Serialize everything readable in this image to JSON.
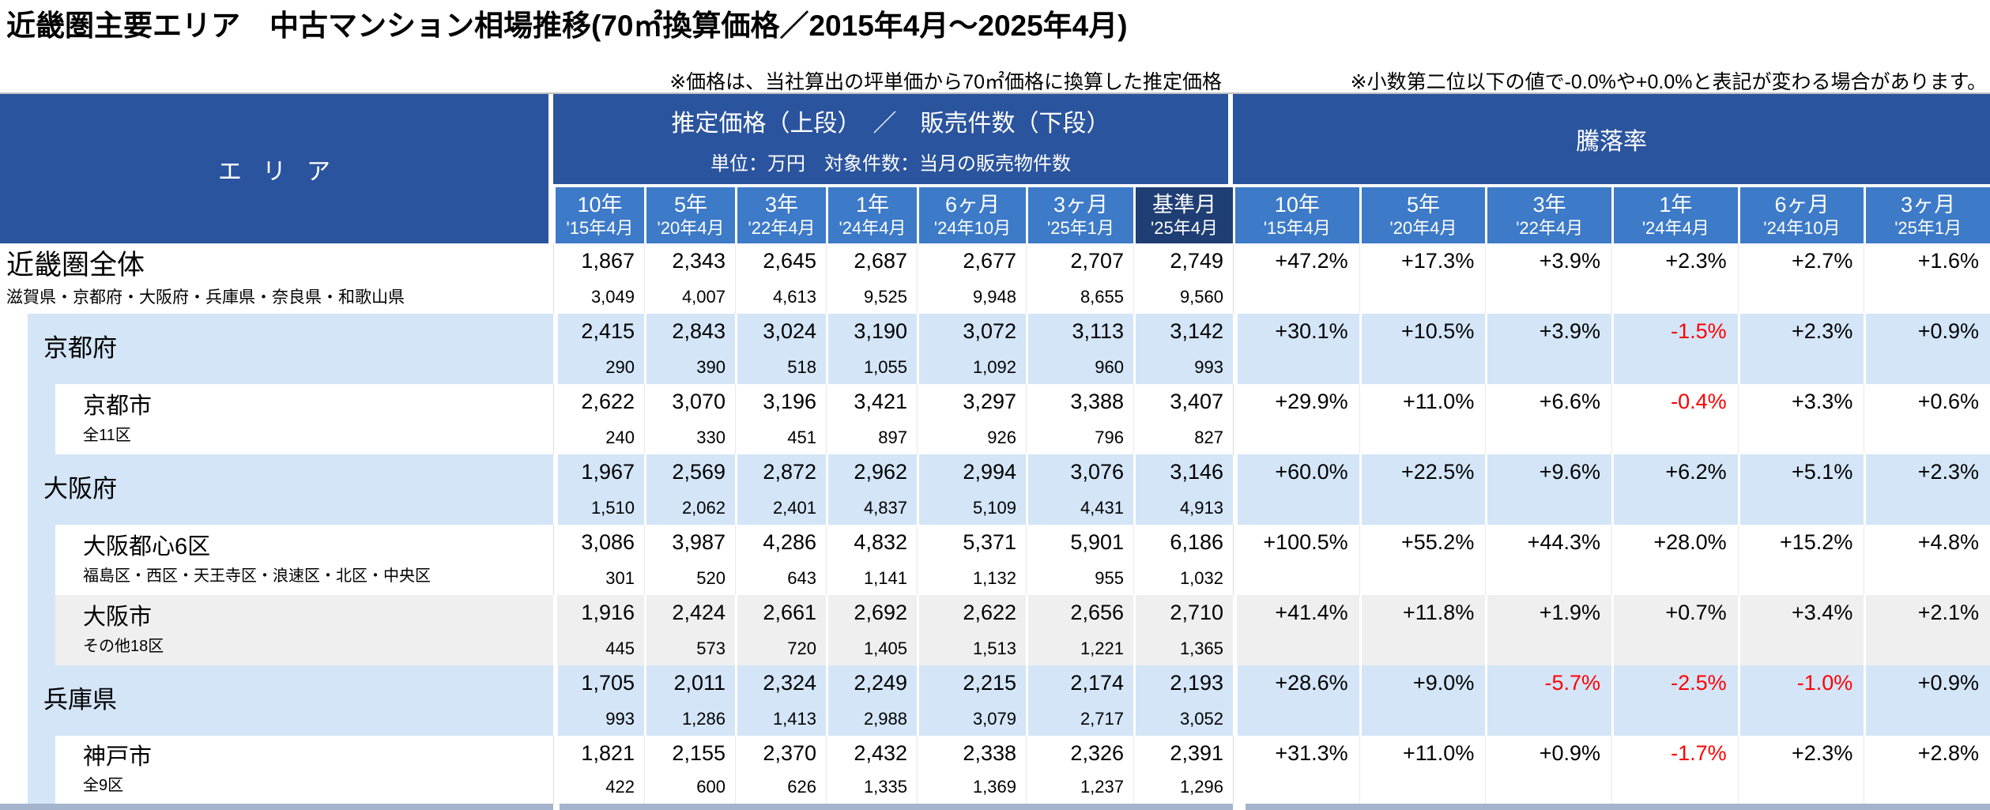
{
  "title": "近畿圏主要エリア　中古マンション相場推移(70㎡換算価格／2015年4月～2025年4月)",
  "notes": {
    "price_note": "※価格は、当社算出の坪単価から70㎡価格に換算した推定価格",
    "decimal_note": "※小数第二位以下の値で-0.0%や+0.0%と表記が変わる場合があります。"
  },
  "colors": {
    "header_dark": "#2B549E",
    "header_mid": "#3D7AC8",
    "header_base_month": "#1E3E74",
    "row_light_blue": "#D3E5F7",
    "row_gray": "#EFEFEF",
    "negative_red": "#FF0000",
    "bottom_strip": "#A3B4CC"
  },
  "table": {
    "area_header": "エリア",
    "price_group": {
      "line1": "推定価格（上段）　／　販売件数（下段）",
      "line2": "単位：万円　対象件数：当月の販売物件数"
    },
    "rate_group": "騰落率",
    "price_columns": [
      {
        "period": "10年",
        "date": "'15年4月"
      },
      {
        "period": "5年",
        "date": "'20年4月"
      },
      {
        "period": "3年",
        "date": "'22年4月"
      },
      {
        "period": "1年",
        "date": "'24年4月"
      },
      {
        "period": "6ヶ月",
        "date": "'24年10月"
      },
      {
        "period": "3ヶ月",
        "date": "'25年1月"
      },
      {
        "period": "基準月",
        "date": "'25年4月",
        "base": true
      }
    ],
    "rate_columns": [
      {
        "period": "10年",
        "date": "'15年4月"
      },
      {
        "period": "5年",
        "date": "'20年4月"
      },
      {
        "period": "3年",
        "date": "'22年4月"
      },
      {
        "period": "1年",
        "date": "'24年4月"
      },
      {
        "period": "6ヶ月",
        "date": "'24年10月"
      },
      {
        "period": "3ヶ月",
        "date": "'25年1月"
      }
    ],
    "rows": [
      {
        "name": "近畿圏全体",
        "sub": "滋賀県・京都府・大阪府・兵庫県・奈良県・和歌山県",
        "level": 0,
        "bg": "white",
        "prices": [
          "1,867",
          "2,343",
          "2,645",
          "2,687",
          "2,677",
          "2,707",
          "2,749"
        ],
        "counts": [
          "3,049",
          "4,007",
          "4,613",
          "9,525",
          "9,948",
          "8,655",
          "9,560"
        ],
        "rates": [
          "+47.2%",
          "+17.3%",
          "+3.9%",
          "+2.3%",
          "+2.7%",
          "+1.6%"
        ]
      },
      {
        "name": "京都府",
        "sub": "",
        "level": 1,
        "bg": "blue",
        "prices": [
          "2,415",
          "2,843",
          "3,024",
          "3,190",
          "3,072",
          "3,113",
          "3,142"
        ],
        "counts": [
          "290",
          "390",
          "518",
          "1,055",
          "1,092",
          "960",
          "993"
        ],
        "rates": [
          "+30.1%",
          "+10.5%",
          "+3.9%",
          "-1.5%",
          "+2.3%",
          "+0.9%"
        ]
      },
      {
        "name": "京都市",
        "sub": "全11区",
        "level": 2,
        "bg": "white",
        "prices": [
          "2,622",
          "3,070",
          "3,196",
          "3,421",
          "3,297",
          "3,388",
          "3,407"
        ],
        "counts": [
          "240",
          "330",
          "451",
          "897",
          "926",
          "796",
          "827"
        ],
        "rates": [
          "+29.9%",
          "+11.0%",
          "+6.6%",
          "-0.4%",
          "+3.3%",
          "+0.6%"
        ]
      },
      {
        "name": "大阪府",
        "sub": "",
        "level": 1,
        "bg": "blue",
        "prices": [
          "1,967",
          "2,569",
          "2,872",
          "2,962",
          "2,994",
          "3,076",
          "3,146"
        ],
        "counts": [
          "1,510",
          "2,062",
          "2,401",
          "4,837",
          "5,109",
          "4,431",
          "4,913"
        ],
        "rates": [
          "+60.0%",
          "+22.5%",
          "+9.6%",
          "+6.2%",
          "+5.1%",
          "+2.3%"
        ]
      },
      {
        "name": "大阪都心6区",
        "sub": "福島区・西区・天王寺区・浪速区・北区・中央区",
        "level": 2,
        "bg": "white",
        "prices": [
          "3,086",
          "3,987",
          "4,286",
          "4,832",
          "5,371",
          "5,901",
          "6,186"
        ],
        "counts": [
          "301",
          "520",
          "643",
          "1,141",
          "1,132",
          "955",
          "1,032"
        ],
        "rates": [
          "+100.5%",
          "+55.2%",
          "+44.3%",
          "+28.0%",
          "+15.2%",
          "+4.8%"
        ]
      },
      {
        "name": "大阪市",
        "sub": "その他18区",
        "level": 2,
        "bg": "gray",
        "prices": [
          "1,916",
          "2,424",
          "2,661",
          "2,692",
          "2,622",
          "2,656",
          "2,710"
        ],
        "counts": [
          "445",
          "573",
          "720",
          "1,405",
          "1,513",
          "1,221",
          "1,365"
        ],
        "rates": [
          "+41.4%",
          "+11.8%",
          "+1.9%",
          "+0.7%",
          "+3.4%",
          "+2.1%"
        ]
      },
      {
        "name": "兵庫県",
        "sub": "",
        "level": 1,
        "bg": "blue",
        "prices": [
          "1,705",
          "2,011",
          "2,324",
          "2,249",
          "2,215",
          "2,174",
          "2,193"
        ],
        "counts": [
          "993",
          "1,286",
          "1,413",
          "2,988",
          "3,079",
          "2,717",
          "3,052"
        ],
        "rates": [
          "+28.6%",
          "+9.0%",
          "-5.7%",
          "-2.5%",
          "-1.0%",
          "+0.9%"
        ]
      },
      {
        "name": "神戸市",
        "sub": "全9区",
        "level": 2,
        "bg": "white",
        "prices": [
          "1,821",
          "2,155",
          "2,370",
          "2,432",
          "2,338",
          "2,326",
          "2,391"
        ],
        "counts": [
          "422",
          "600",
          "626",
          "1,335",
          "1,369",
          "1,237",
          "1,296"
        ],
        "rates": [
          "+31.3%",
          "+11.0%",
          "+0.9%",
          "-1.7%",
          "+2.3%",
          "+2.8%"
        ]
      }
    ]
  }
}
